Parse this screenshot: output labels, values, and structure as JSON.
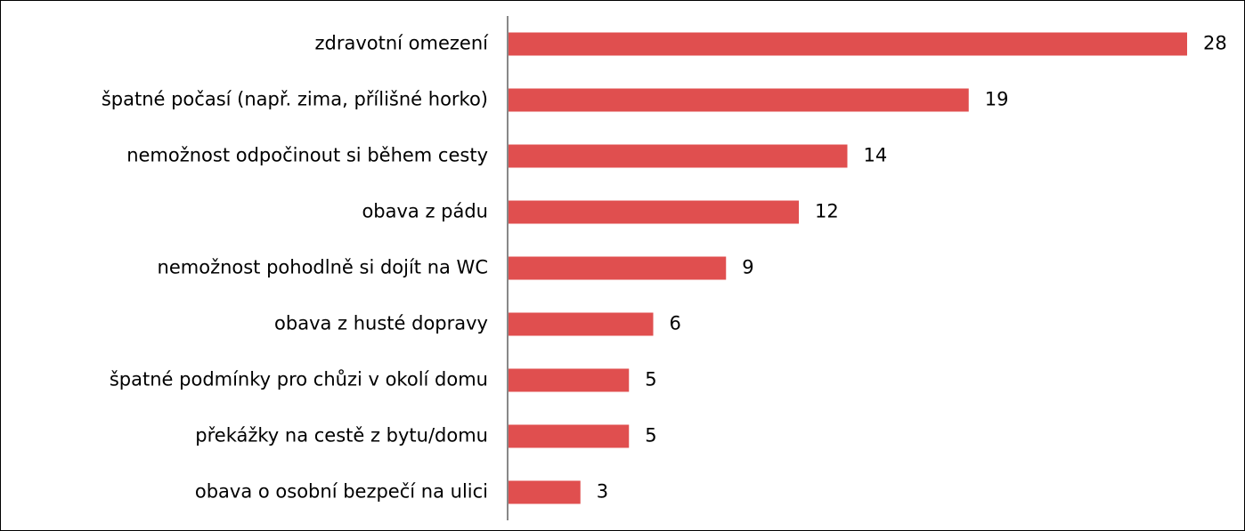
{
  "chart_data": {
    "type": "bar",
    "orientation": "horizontal",
    "color": "#e04f4f",
    "categories": [
      "zdravotní omezení",
      "špatné počasí (např. zima, přílišné horko)",
      "nemožnost odpočinout si během cesty",
      "obava z pádu",
      "nemožnost pohodlně si dojít na WC",
      "obava z husté dopravy",
      "špatné podmínky pro chůzi v okolí domu",
      "překážky na cestě z bytu/domu",
      "obava o osobní bezpečí na ulici"
    ],
    "values": [
      28,
      19,
      14,
      12,
      9,
      6,
      5,
      5,
      3
    ]
  }
}
